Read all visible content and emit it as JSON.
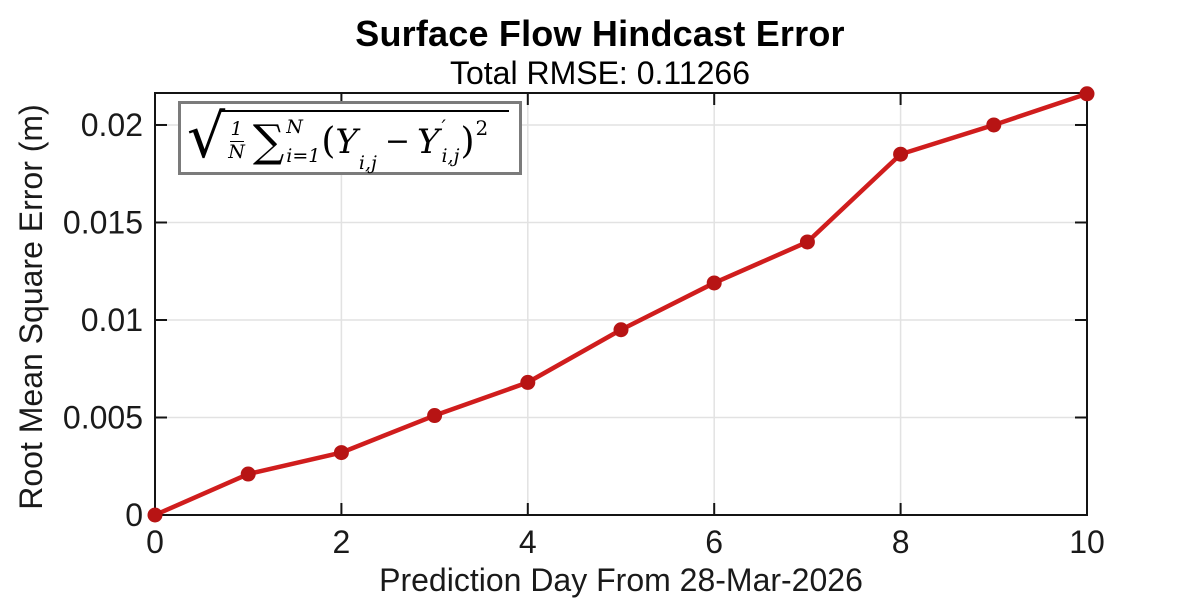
{
  "chart_data": {
    "type": "line",
    "title": "Surface Flow Hindcast Error",
    "subtitle": "Total RMSE: 0.11266",
    "xlabel": "Prediction Day From 28-Mar-2026",
    "ylabel": "Root Mean Square Error (m)",
    "x": [
      0,
      1,
      2,
      3,
      4,
      5,
      6,
      7,
      8,
      9,
      10
    ],
    "y": [
      0.0,
      0.0021,
      0.0032,
      0.0051,
      0.0068,
      0.0095,
      0.0119,
      0.014,
      0.0185,
      0.02,
      0.0216
    ],
    "xlim": [
      0,
      10
    ],
    "ylim": [
      0,
      0.02164
    ],
    "x_ticks": [
      0,
      2,
      4,
      6,
      8,
      10
    ],
    "x_tick_labels": [
      "0",
      "2",
      "4",
      "6",
      "8",
      "10"
    ],
    "y_ticks": [
      0,
      0.005,
      0.01,
      0.015,
      0.02
    ],
    "y_tick_labels": [
      "0",
      "0.005",
      "0.01",
      "0.015",
      "0.02"
    ],
    "grid": true,
    "legend": "none",
    "line_color": "#d01d1d",
    "marker_color": "#b71414",
    "axis_color": "#141414",
    "grid_color": "#e2e2e2"
  },
  "formula": {
    "radical": "√",
    "frac_num": "1",
    "frac_den": "N",
    "sigma": "∑",
    "sum_upper": "N",
    "sum_lower": "i=1",
    "open_paren": "(",
    "var1": "Y",
    "sub1": "i,j",
    "minus": "−",
    "var2": "Y",
    "prime": "′",
    "sub2": "i,j",
    "close_paren": ")",
    "exponent": "2"
  }
}
